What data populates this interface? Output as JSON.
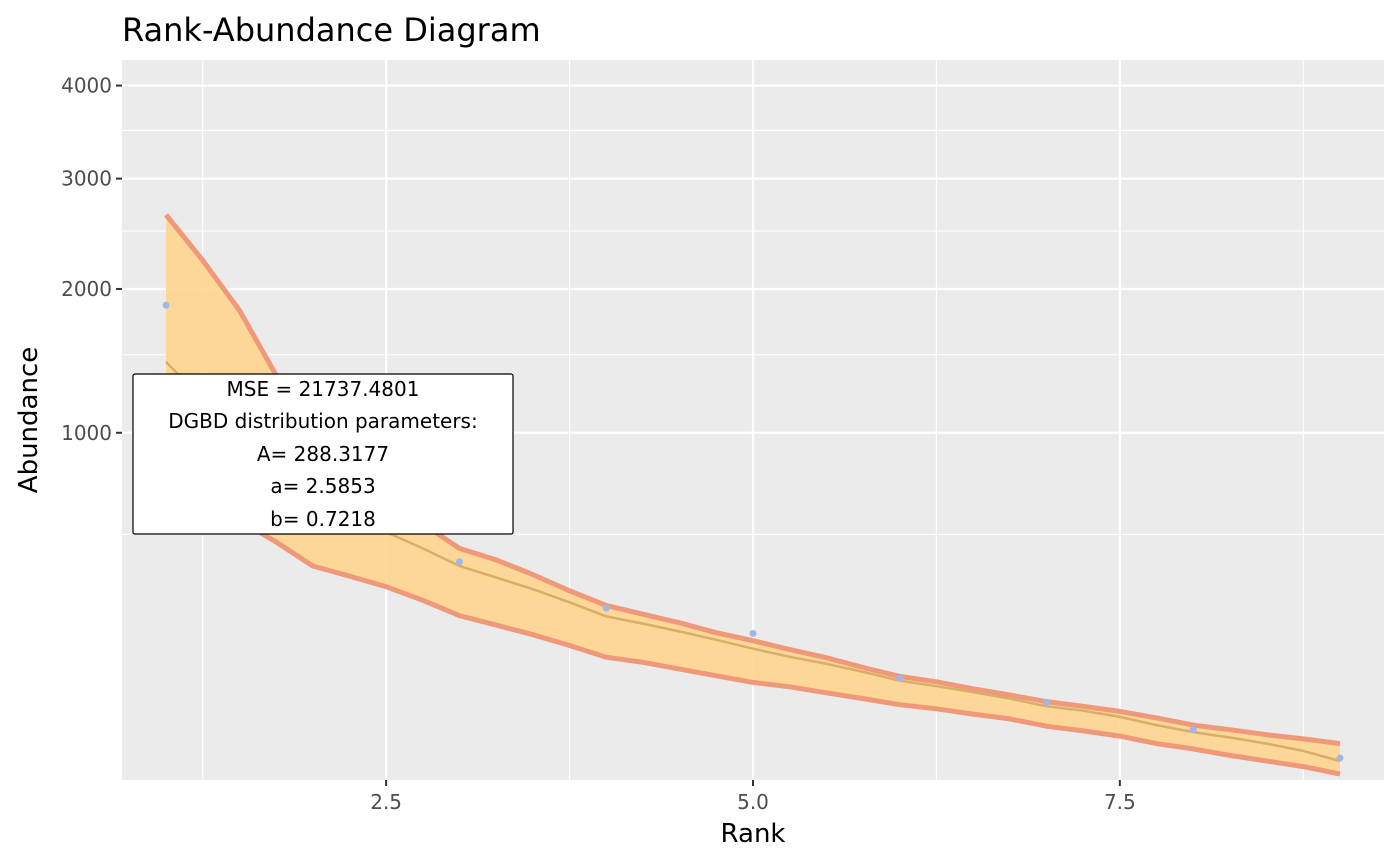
{
  "chart_data": {
    "type": "line",
    "title": "Rank-Abundance Diagram",
    "xlabel": "Rank",
    "ylabel": "Abundance",
    "x_scale": "linear",
    "y_scale": "sqrt",
    "xlim": [
      0.7,
      9.3
    ],
    "ylim": [
      0,
      4300
    ],
    "x_ticks": [
      2.5,
      5.0,
      7.5
    ],
    "x_tick_labels": [
      "2.5",
      "5.0",
      "7.5"
    ],
    "y_ticks": [
      1000,
      2000,
      3000,
      4000
    ],
    "y_tick_labels": [
      "1000",
      "2000",
      "3000",
      "4000"
    ],
    "grid": true,
    "legend": "none",
    "colors": {
      "panel_background": "#ebebeb",
      "grid": "#ffffff",
      "ribbon_fill": "#ffd58e",
      "ribbon_border": "#f0987a",
      "fit_line": "#d9ad6a",
      "points": "#9fb7ef"
    },
    "series": [
      {
        "type": "points",
        "x": [
          1,
          2,
          3,
          4,
          5,
          6,
          7,
          8,
          9
        ],
        "y": [
          1870,
          585,
          395,
          245,
          178,
          86,
          50,
          21,
          4
        ]
      },
      {
        "type": "fit",
        "x": [
          1,
          1.25,
          1.5,
          1.75,
          2,
          2.25,
          2.5,
          2.75,
          3,
          3.25,
          3.5,
          3.75,
          4,
          4.25,
          4.5,
          4.75,
          5,
          5.25,
          5.5,
          5.75,
          6,
          6.25,
          6.5,
          6.75,
          7,
          7.25,
          7.5,
          7.75,
          8,
          8.25,
          8.5,
          8.75,
          9
        ],
        "y": [
          1450,
          1200,
          1000,
          815,
          645,
          575,
          510,
          445,
          380,
          340,
          302,
          262,
          222,
          203,
          183,
          163,
          143,
          126,
          112,
          97,
          82,
          73,
          64,
          55,
          45,
          40,
          33,
          25,
          19,
          15,
          11,
          7,
          3
        ]
      },
      {
        "type": "band_upper",
        "x": [
          1,
          1.25,
          1.5,
          1.75,
          2,
          2.25,
          2.5,
          2.75,
          3,
          3.25,
          3.5,
          3.75,
          4,
          4.25,
          4.5,
          4.75,
          5,
          5.25,
          5.5,
          5.75,
          6,
          6.25,
          6.5,
          6.75,
          7,
          7.25,
          7.5,
          7.75,
          8,
          8.25,
          8.5,
          8.75,
          9
        ],
        "y": [
          2650,
          2240,
          1830,
          1360,
          825,
          735,
          640,
          545,
          445,
          402,
          350,
          297,
          253,
          228,
          205,
          180,
          161,
          141,
          124,
          105,
          89,
          80,
          69,
          60,
          51,
          45,
          39,
          32,
          25,
          21,
          17,
          14,
          11
        ]
      },
      {
        "type": "band_lower",
        "x": [
          1,
          1.25,
          1.5,
          1.75,
          2,
          2.25,
          2.5,
          2.75,
          3,
          3.25,
          3.5,
          3.75,
          4,
          4.25,
          4.5,
          4.75,
          5,
          5.25,
          5.5,
          5.75,
          6,
          6.25,
          6.5,
          6.75,
          7,
          7.25,
          7.5,
          7.75,
          8,
          8.25,
          8.5,
          8.75,
          9
        ],
        "y": [
          750,
          650,
          560,
          470,
          380,
          345,
          310,
          268,
          224,
          199,
          175,
          150,
          125,
          115,
          102,
          90,
          79,
          72,
          63,
          55,
          47,
          42,
          36,
          31,
          24,
          20,
          16,
          11,
          8,
          5,
          3,
          1.5,
          0.3
        ]
      }
    ],
    "annotation": [
      "MSE = 21737.4801",
      "DGBD distribution parameters:",
      "A= 288.3177",
      "a= 2.5853",
      "b= 0.7218"
    ]
  }
}
